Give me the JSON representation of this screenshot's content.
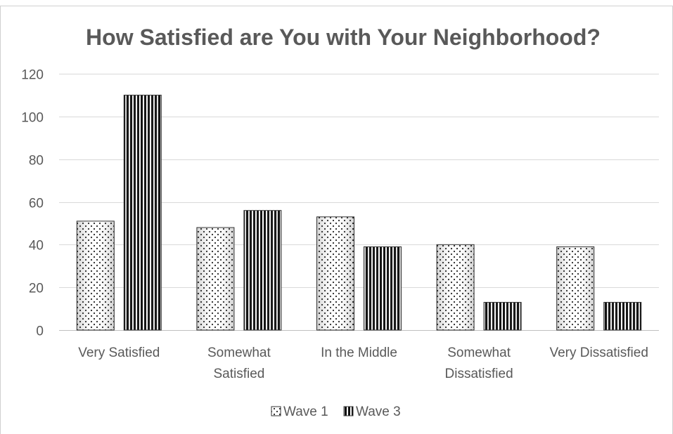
{
  "chart_data": {
    "type": "bar",
    "title": "How Satisfied are You with Your Neighborhood?",
    "categories": [
      [
        "Very Satisfied"
      ],
      [
        "Somewhat",
        "Satisfied"
      ],
      [
        "In the Middle"
      ],
      [
        "Somewhat",
        "Dissatisfied"
      ],
      [
        "Very Dissatisfied"
      ]
    ],
    "series": [
      {
        "name": "Wave 1",
        "values": [
          51,
          48,
          53,
          40,
          39
        ],
        "pattern": "dots"
      },
      {
        "name": "Wave 3",
        "values": [
          110,
          56,
          39,
          13,
          13
        ],
        "pattern": "vertical-stripes"
      }
    ],
    "ylim": [
      0,
      120
    ],
    "yticks": [
      "0",
      "20",
      "40",
      "60",
      "80",
      "100",
      "120"
    ],
    "grid": true,
    "legend_position": "bottom",
    "colors": {
      "text": "#595959",
      "grid": "#d9d9d9",
      "bar_dark": "#000000",
      "bar_light": "#ffffff"
    }
  }
}
